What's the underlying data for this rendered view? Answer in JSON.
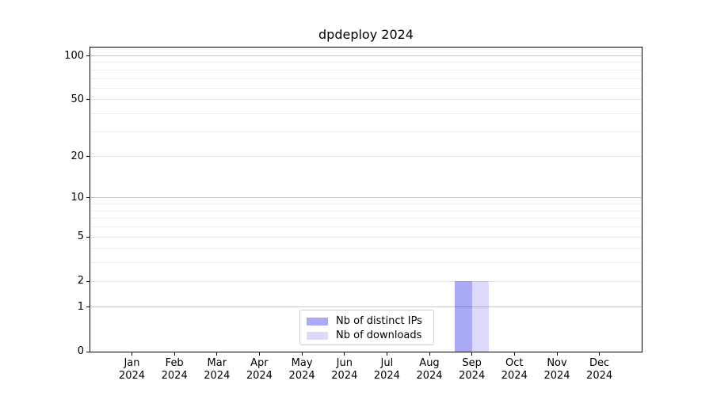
{
  "title": "dpdeploy 2024",
  "chart_data": {
    "type": "bar",
    "title": "dpdeploy 2024",
    "categories": [
      "Jan",
      "Feb",
      "Mar",
      "Apr",
      "May",
      "Jun",
      "Jul",
      "Aug",
      "Sep",
      "Oct",
      "Nov",
      "Dec"
    ],
    "x_tick_year": "2024",
    "series": [
      {
        "name": "Nb of distinct IPs",
        "color": "#a9a9f7",
        "values": [
          0,
          0,
          0,
          0,
          0,
          0,
          0,
          0,
          2,
          0,
          0,
          0
        ]
      },
      {
        "name": "Nb of downloads",
        "color": "#dbdbf9",
        "values": [
          0,
          0,
          0,
          0,
          0,
          0,
          0,
          0,
          2,
          0,
          0,
          0
        ]
      }
    ],
    "y_axis": {
      "scale": "log1p",
      "ylim": [
        0,
        114
      ],
      "major_ticks": [
        0,
        1,
        2,
        5,
        10,
        20,
        50,
        100
      ],
      "decade_ticks": [
        1,
        10,
        100
      ],
      "minor_ticks": [
        3,
        4,
        6,
        7,
        8,
        9,
        30,
        40,
        60,
        70,
        80,
        90
      ],
      "grid": true
    },
    "legend": {
      "position": "lower-center",
      "entries": [
        "Nb of distinct IPs",
        "Nb of downloads"
      ]
    }
  },
  "colors": {
    "background": "#ffffff",
    "axis": "#000000",
    "grid_decade": "rgba(0,0,0,0.22)",
    "grid_major": "rgba(0,0,0,0.11)",
    "grid_minor": "rgba(0,0,0,0.07)",
    "legend_border": "#cccccc"
  }
}
